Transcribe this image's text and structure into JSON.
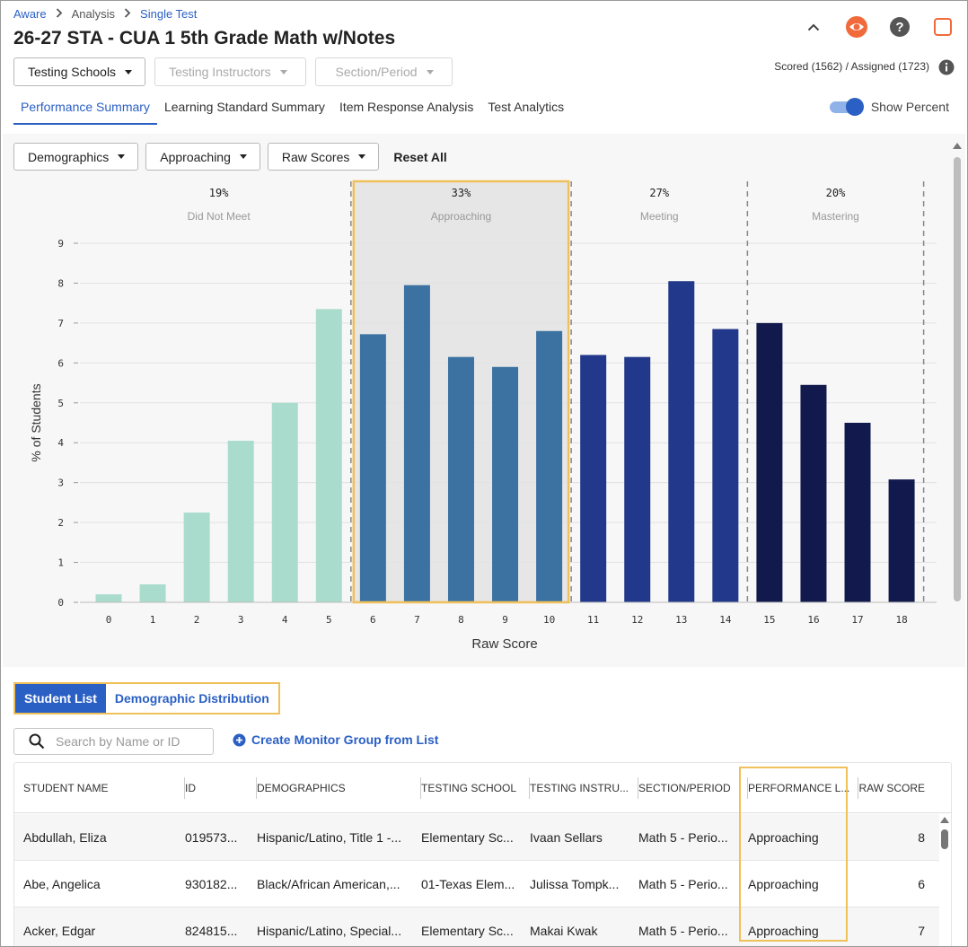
{
  "breadcrumb": [
    {
      "label": "Aware"
    },
    {
      "label": "Analysis"
    },
    {
      "label": "Single Test"
    }
  ],
  "page_title": "26-27 STA - CUA 1 5th Grade Math w/Notes",
  "filters": {
    "testing_schools": "Testing Schools",
    "testing_instructors": "Testing Instructors",
    "section_period": "Section/Period"
  },
  "scored_text": "Scored (1562) / Assigned (1723)",
  "tabs": [
    {
      "label": "Performance Summary"
    },
    {
      "label": "Learning Standard Summary"
    },
    {
      "label": "Item Response Analysis"
    },
    {
      "label": "Test Analytics"
    }
  ],
  "toggle_label": "Show Percent",
  "chart_filters": {
    "demographics": "Demographics",
    "approaching": "Approaching",
    "raw_scores": "Raw Scores",
    "reset": "Reset All"
  },
  "chart_data": {
    "type": "bar",
    "xlabel": "Raw Score",
    "ylabel": "% of Students",
    "ylim": [
      0,
      9
    ],
    "yticks": [
      0,
      1,
      2,
      3,
      4,
      5,
      6,
      7,
      8,
      9
    ],
    "categories": [
      "0",
      "1",
      "2",
      "3",
      "4",
      "5",
      "6",
      "7",
      "8",
      "9",
      "10",
      "11",
      "12",
      "13",
      "14",
      "15",
      "16",
      "17",
      "18"
    ],
    "values": [
      0.2,
      0.45,
      2.25,
      4.05,
      5.0,
      7.35,
      6.72,
      7.95,
      6.15,
      5.9,
      6.8,
      6.2,
      6.15,
      8.05,
      6.85,
      7.0,
      5.45,
      4.5,
      3.08
    ],
    "bands": [
      {
        "name": "Did Not Meet",
        "percent": "19%",
        "from": 0,
        "to": 5,
        "color": "#aadccd"
      },
      {
        "name": "Approaching",
        "percent": "33%",
        "from": 6,
        "to": 10,
        "color": "#3c72a1",
        "highlighted": true
      },
      {
        "name": "Meeting",
        "percent": "27%",
        "from": 11,
        "to": 14,
        "color": "#22388a"
      },
      {
        "name": "Mastering",
        "percent": "20%",
        "from": 15,
        "to": 18,
        "color": "#121a4d"
      }
    ]
  },
  "list_tabs": {
    "student_list": "Student List",
    "demographic_distribution": "Demographic Distribution"
  },
  "search": {
    "placeholder": "Search by Name or ID"
  },
  "create_group": "Create Monitor Group from List",
  "table": {
    "columns": [
      "STUDENT NAME",
      "ID",
      "DEMOGRAPHICS",
      "TESTING SCHOOL",
      "TESTING INSTRU...",
      "SECTION/PERIOD",
      "PERFORMANCE L...",
      "RAW SCORE"
    ],
    "rows": [
      [
        "Abdullah, Eliza",
        "019573...",
        "Hispanic/Latino, Title 1 -...",
        "Elementary Sc...",
        "Ivaan Sellars",
        "Math 5 - Perio...",
        "Approaching",
        "8"
      ],
      [
        "Abe, Angelica",
        "930182...",
        "Black/African American,...",
        "01-Texas Elem...",
        "Julissa Tompk...",
        "Math 5 - Perio...",
        "Approaching",
        "6"
      ],
      [
        "Acker, Edgar",
        "824815...",
        "Hispanic/Latino, Special...",
        "Elementary Sc...",
        "Makai Kwak",
        "Math 5 - Perio...",
        "Approaching",
        "7"
      ]
    ]
  },
  "colors": {
    "accent": "#2a5fc4",
    "highlight": "#f0c05a"
  }
}
